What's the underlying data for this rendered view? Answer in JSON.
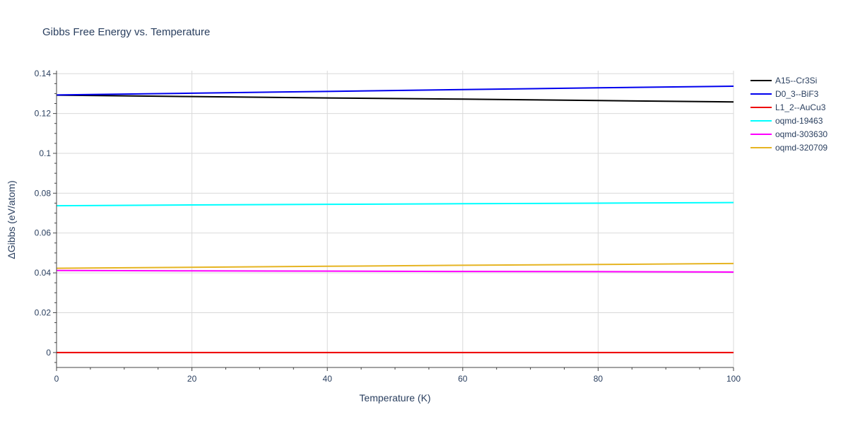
{
  "chart_data": {
    "type": "line",
    "title": "Gibbs Free Energy vs. Temperature",
    "xlabel": "Temperature (K)",
    "ylabel": "ΔGibbs (eV/atom)",
    "xlim": [
      0,
      100
    ],
    "ylim": [
      -0.0075,
      0.1415
    ],
    "xticks": [
      0,
      20,
      40,
      60,
      80,
      100
    ],
    "yticks": [
      0,
      0.02,
      0.04,
      0.06,
      0.08,
      0.1,
      0.12,
      0.14
    ],
    "ytick_labels": [
      "0",
      "0.02",
      "0.04",
      "0.06",
      "0.08",
      "0.1",
      "0.12",
      "0.14"
    ],
    "grid": true,
    "legend_position": "top-right",
    "x": [
      0,
      20,
      40,
      60,
      80,
      100
    ],
    "series": [
      {
        "name": "A15--Cr3Si",
        "color": "#000000",
        "values": [
          0.1292,
          0.1285,
          0.1278,
          0.1272,
          0.1265,
          0.1258
        ]
      },
      {
        "name": "D0_3--BiF3",
        "color": "#0000ee",
        "values": [
          0.1293,
          0.1302,
          0.1311,
          0.132,
          0.1329,
          0.1337
        ]
      },
      {
        "name": "L1_2--AuCu3",
        "color": "#ee0000",
        "values": [
          0.0,
          0.0,
          0.0,
          0.0,
          0.0,
          0.0
        ]
      },
      {
        "name": "oqmd-19463",
        "color": "#00ffff",
        "values": [
          0.0737,
          0.0741,
          0.0744,
          0.0747,
          0.075,
          0.0753
        ]
      },
      {
        "name": "oqmd-303630",
        "color": "#ff00ff",
        "values": [
          0.0412,
          0.041,
          0.0409,
          0.0407,
          0.0406,
          0.0404
        ]
      },
      {
        "name": "oqmd-320709",
        "color": "#e6b422",
        "values": [
          0.0423,
          0.0428,
          0.0433,
          0.0438,
          0.0442,
          0.0447
        ]
      }
    ]
  }
}
